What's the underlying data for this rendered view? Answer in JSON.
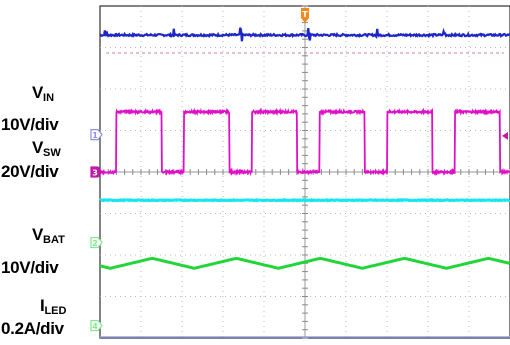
{
  "chart_data": {
    "type": "line",
    "title": "",
    "grid": true,
    "xlim": [
      0,
      10
    ],
    "ylim": [
      -4,
      4
    ],
    "traces": [
      {
        "name": "V_IN",
        "channel": "1",
        "scale": "10V/div",
        "color": "#1d27c9",
        "label_main": "V",
        "label_sub": "IN",
        "level": 3.3,
        "shape": "dc_with_switching_spikes",
        "spike_period_div": 1.65
      },
      {
        "name": "V_SW",
        "channel": "3",
        "scale": "20V/div",
        "color": "#e010c8",
        "label_main": "V",
        "label_sub": "SW",
        "high": 1.45,
        "low": 0.0,
        "period_div": 1.65,
        "duty": 0.67,
        "shape": "square"
      },
      {
        "name": "V_BAT",
        "channel": "",
        "scale": "10V/div",
        "color": "#16e6f0",
        "label_main": "V",
        "label_sub": "BAT",
        "level": -0.68,
        "shape": "dc"
      },
      {
        "name": "I_LED",
        "channel": "2",
        "scale": "0.2A/div",
        "color": "#22d63a",
        "label_main": "I",
        "label_sub": "LED",
        "level": -2.2,
        "ripple_amplitude": 0.12,
        "period_div": 2.05,
        "shape": "triangle_ripple"
      }
    ],
    "ground_markers": [
      {
        "channel": "1",
        "color": "#8a90e6",
        "level": 0.9
      },
      {
        "channel": "3",
        "color": "#c01aa8",
        "level": 0.0
      },
      {
        "channel": "2",
        "color": "#7fe98c",
        "level": -1.7
      },
      {
        "channel": "4",
        "color": "#7fe98c",
        "level": -3.7
      }
    ],
    "trigger_marker": {
      "label": "T",
      "color": "#f08a1e",
      "x_div": 5.0
    },
    "ch3_right_marker_color": "#c01aa8",
    "bottom_reference_color": "#9aa0e0"
  },
  "labels": {
    "vin_main": "V",
    "vin_sub": "IN",
    "vin_scale": "10V/div",
    "vsw_main": "V",
    "vsw_sub": "SW",
    "vsw_scale": "20V/div",
    "vbat_main": "V",
    "vbat_sub": "BAT",
    "vbat_scale": "10V/div",
    "iled_main": "I",
    "iled_sub": "LED",
    "iled_scale": "0.2A/div"
  }
}
